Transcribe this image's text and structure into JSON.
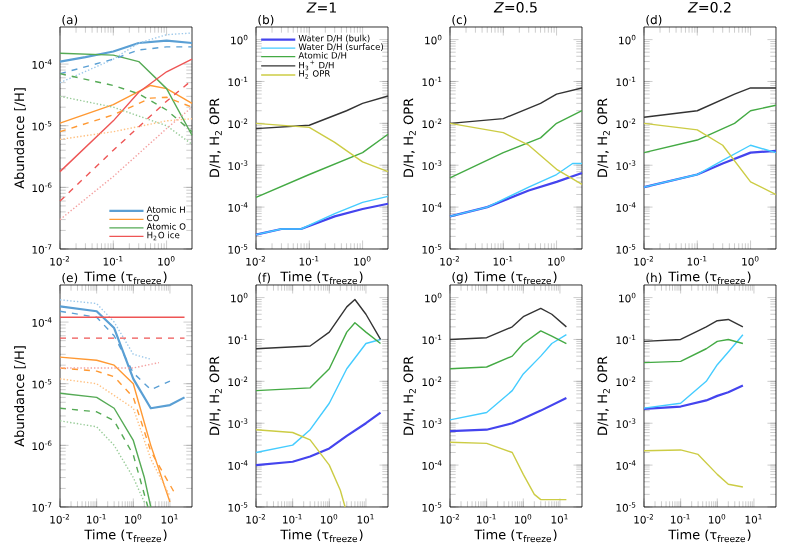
{
  "chart_data": [
    {
      "type": "line",
      "title": null,
      "annotations": [
        "(a)"
      ],
      "xlabel": "Time (τ$_{freeze}$)",
      "ylabel": "Abundance [/H]",
      "log": "xy",
      "legend": "bottom right",
      "xlim": [
        0.01,
        3
      ],
      "ylim": [
        1e-07,
        0.0004
      ],
      "xticks": [
        {
          "value": 0.01,
          "label": "10$^{-2}$"
        },
        {
          "value": 0.1,
          "label": "10$^{-1}$"
        },
        {
          "value": 1,
          "label": "10$^{0}$"
        }
      ],
      "yticks": [
        {
          "value": 1e-07,
          "label": "10$^{-7}$"
        },
        {
          "value": 1e-06,
          "label": "10$^{-6}$"
        },
        {
          "value": 1e-05,
          "label": "10$^{-5}$"
        },
        {
          "value": 0.0001,
          "label": "10$^{-4}$"
        }
      ],
      "series": [
        {
          "name": "Atomic H",
          "color": "#5a9fd4",
          "line_style": "solid",
          "x": [
            0.01,
            0.03,
            0.1,
            0.3,
            1,
            3
          ],
          "values": [
            0.00011,
            0.00013,
            0.00016,
            0.00022,
            0.00024,
            0.00022
          ]
        },
        {
          "name": "CO",
          "color": "#ff9933",
          "line_style": "solid",
          "x": [
            0.01,
            0.1,
            0.5,
            1,
            3
          ],
          "values": [
            1.1e-05,
            2.2e-05,
            4.5e-05,
            4e-05,
            2.3e-05
          ]
        },
        {
          "name": "Atomic O",
          "color": "#55aa55",
          "line_style": "solid",
          "x": [
            0.01,
            0.1,
            0.3,
            1,
            3
          ],
          "values": [
            0.00015,
            0.00014,
            0.00011,
            4e-05,
            7e-06
          ]
        },
        {
          "name": "H$_{2}$O ice",
          "color": "#ee5555",
          "line_style": "solid",
          "x": [
            0.01,
            0.1,
            0.3,
            1,
            3
          ],
          "values": [
            1.8e-06,
            1.2e-05,
            3.5e-05,
            7.5e-05,
            0.00012
          ]
        },
        {
          "color": "#5a9fd4",
          "line_style": "dashed",
          "x": [
            0.01,
            0.1,
            0.3,
            1,
            3
          ],
          "values": [
            7e-05,
            0.00012,
            0.00017,
            0.00019,
            0.00019
          ]
        },
        {
          "color": "#9cc8ea",
          "line_style": "dotted",
          "x": [
            0.01,
            0.1,
            0.3,
            1,
            3
          ],
          "values": [
            5e-05,
            0.00012,
            0.00022,
            0.0003,
            0.00032
          ]
        },
        {
          "color": "#ff9933",
          "line_style": "dashed",
          "x": [
            0.01,
            0.1,
            0.5,
            1,
            3
          ],
          "values": [
            8e-06,
            1.5e-05,
            2.8e-05,
            2.9e-05,
            2e-05
          ]
        },
        {
          "color": "#ffc080",
          "line_style": "dotted",
          "x": [
            0.01,
            0.1,
            1,
            3
          ],
          "values": [
            6e-06,
            8e-06,
            1.2e-05,
            1.3e-05
          ]
        },
        {
          "color": "#55aa55",
          "line_style": "dashed",
          "x": [
            0.01,
            0.1,
            0.3,
            1,
            3
          ],
          "values": [
            7e-05,
            4.5e-05,
            3.3e-05,
            1.8e-05,
            8e-06
          ]
        },
        {
          "color": "#99cc99",
          "line_style": "dotted",
          "x": [
            0.01,
            0.1,
            1,
            3
          ],
          "values": [
            3e-05,
            2e-05,
            1e-05,
            5e-06
          ]
        },
        {
          "color": "#ee5555",
          "line_style": "dashed",
          "x": [
            0.01,
            0.1,
            1,
            3
          ],
          "values": [
            6e-07,
            4e-06,
            2.5e-05,
            5.5e-05
          ]
        },
        {
          "color": "#f4a0a0",
          "line_style": "dotted",
          "x": [
            0.01,
            0.1,
            1,
            3
          ],
          "values": [
            3e-07,
            1.5e-06,
            9e-06,
            2e-05
          ]
        }
      ]
    },
    {
      "type": "line",
      "title": "*Z*=1",
      "annotations": [
        "(b)"
      ],
      "xlabel": "Time (τ$_{freeze}$)",
      "ylabel": "D/H, H$_{2}$ OPR",
      "log": "xy",
      "legend": "top left",
      "xlim": [
        0.01,
        3
      ],
      "ylim": [
        1e-05,
        2
      ],
      "xticks": [
        {
          "value": 0.01,
          "label": "10$^{-2}$"
        },
        {
          "value": 0.1,
          "label": "10$^{-1}$"
        },
        {
          "value": 1,
          "label": "10$^{0}$"
        }
      ],
      "yticks": [
        {
          "value": 1e-05,
          "label": "10$^{-5}$"
        },
        {
          "value": 0.0001,
          "label": "10$^{-4}$"
        },
        {
          "value": 0.001,
          "label": "10$^{-3}$"
        },
        {
          "value": 0.01,
          "label": "10$^{-2}$"
        },
        {
          "value": 0.1,
          "label": "10$^{-1}$"
        },
        {
          "value": 1,
          "label": "10$^{0}$"
        }
      ],
      "series": [
        {
          "name": "Water D/H (bulk)",
          "color": "#4444ee",
          "line_style": "solid",
          "x": [
            0.01,
            0.03,
            0.07,
            0.3,
            1,
            3
          ],
          "values": [
            2.2e-05,
            3e-05,
            3e-05,
            6e-05,
            9e-05,
            0.00012
          ]
        },
        {
          "name": "Water D/H (surface)",
          "color": "#44ccff",
          "line_style": "solid",
          "x": [
            0.01,
            0.03,
            0.07,
            0.3,
            1,
            3
          ],
          "values": [
            2.2e-05,
            3e-05,
            3e-05,
            7e-05,
            0.00013,
            0.00018
          ]
        },
        {
          "name": "Atomic D/H",
          "color": "#44aa44",
          "line_style": "solid",
          "x": [
            0.01,
            0.1,
            1,
            3
          ],
          "values": [
            0.00017,
            0.0006,
            0.002,
            0.0055
          ]
        },
        {
          "name": "H$_{3}$$^{+}$ D/H",
          "color": "#333333",
          "line_style": "solid",
          "x": [
            0.01,
            0.1,
            0.5,
            1,
            3
          ],
          "values": [
            0.0075,
            0.009,
            0.02,
            0.03,
            0.045
          ]
        },
        {
          "name": "H$_{2}$ OPR",
          "color": "#cccc44",
          "line_style": "solid",
          "x": [
            0.01,
            0.1,
            0.3,
            1,
            3
          ],
          "values": [
            0.01,
            0.008,
            0.0035,
            0.0012,
            0.0007
          ]
        }
      ]
    },
    {
      "type": "line",
      "title": "*Z*=0.5",
      "annotations": [
        "(c)"
      ],
      "xlabel": "Time (τ$_{freeze}$)",
      "ylabel": "D/H, H$_{2}$ OPR",
      "log": "xy",
      "xlim": [
        0.01,
        3
      ],
      "ylim": [
        1e-05,
        2
      ],
      "xticks": [
        {
          "value": 0.01,
          "label": "10$^{-2}$"
        },
        {
          "value": 0.1,
          "label": "10$^{-1}$"
        },
        {
          "value": 1,
          "label": "10$^{0}$"
        }
      ],
      "yticks": [
        {
          "value": 1e-05,
          "label": "10$^{-5}$"
        },
        {
          "value": 0.0001,
          "label": "10$^{-4}$"
        },
        {
          "value": 0.001,
          "label": "10$^{-3}$"
        },
        {
          "value": 0.01,
          "label": "10$^{-2}$"
        },
        {
          "value": 0.1,
          "label": "10$^{-1}$"
        },
        {
          "value": 1,
          "label": "10$^{0}$"
        }
      ],
      "series": [
        {
          "color": "#4444ee",
          "line_style": "solid",
          "x": [
            0.01,
            0.05,
            0.3,
            1,
            3
          ],
          "values": [
            6e-05,
            0.0001,
            0.00025,
            0.0004,
            0.00065
          ]
        },
        {
          "color": "#44ccff",
          "line_style": "solid",
          "x": [
            0.01,
            0.05,
            0.3,
            1,
            2,
            3
          ],
          "values": [
            6e-05,
            0.0001,
            0.0003,
            0.0006,
            0.0011,
            0.0011
          ]
        },
        {
          "color": "#44aa44",
          "line_style": "solid",
          "x": [
            0.01,
            0.1,
            0.5,
            1,
            3
          ],
          "values": [
            0.0005,
            0.002,
            0.0045,
            0.01,
            0.02
          ]
        },
        {
          "color": "#333333",
          "line_style": "solid",
          "x": [
            0.01,
            0.1,
            0.5,
            1,
            3
          ],
          "values": [
            0.01,
            0.013,
            0.03,
            0.05,
            0.07
          ]
        },
        {
          "color": "#cccc44",
          "line_style": "solid",
          "x": [
            0.01,
            0.1,
            0.3,
            1,
            3
          ],
          "values": [
            0.01,
            0.006,
            0.003,
            0.0008,
            0.00035
          ]
        }
      ]
    },
    {
      "type": "line",
      "title": "*Z*=0.2",
      "annotations": [
        "(d)"
      ],
      "xlabel": "Time (τ$_{freeze}$)",
      "ylabel": "D/H, H$_{2}$ OPR",
      "log": "xy",
      "xlim": [
        0.01,
        3
      ],
      "ylim": [
        1e-05,
        2
      ],
      "xticks": [
        {
          "value": 0.01,
          "label": "10$^{-2}$"
        },
        {
          "value": 0.1,
          "label": "10$^{-1}$"
        },
        {
          "value": 1,
          "label": "10$^{0}$"
        }
      ],
      "yticks": [
        {
          "value": 1e-05,
          "label": "10$^{-5}$"
        },
        {
          "value": 0.0001,
          "label": "10$^{-4}$"
        },
        {
          "value": 0.001,
          "label": "10$^{-3}$"
        },
        {
          "value": 0.01,
          "label": "10$^{-2}$"
        },
        {
          "value": 0.1,
          "label": "10$^{-1}$"
        },
        {
          "value": 1,
          "label": "10$^{0}$"
        }
      ],
      "series": [
        {
          "color": "#4444ee",
          "line_style": "solid",
          "x": [
            0.01,
            0.1,
            0.3,
            1,
            3
          ],
          "values": [
            0.0003,
            0.0006,
            0.0011,
            0.002,
            0.0022
          ]
        },
        {
          "color": "#44ccff",
          "line_style": "solid",
          "x": [
            0.01,
            0.1,
            0.3,
            1,
            3
          ],
          "values": [
            0.0003,
            0.0006,
            0.0013,
            0.003,
            0.002
          ]
        },
        {
          "color": "#44aa44",
          "line_style": "solid",
          "x": [
            0.01,
            0.1,
            0.5,
            1,
            3
          ],
          "values": [
            0.002,
            0.004,
            0.01,
            0.02,
            0.027
          ]
        },
        {
          "color": "#333333",
          "line_style": "solid",
          "x": [
            0.01,
            0.1,
            0.5,
            1,
            3
          ],
          "values": [
            0.014,
            0.02,
            0.05,
            0.07,
            0.07
          ]
        },
        {
          "color": "#cccc44",
          "line_style": "solid",
          "x": [
            0.01,
            0.1,
            0.3,
            1,
            3
          ],
          "values": [
            0.01,
            0.007,
            0.003,
            0.0004,
            0.0002
          ]
        }
      ]
    },
    {
      "type": "line",
      "title": null,
      "annotations": [
        "(e)"
      ],
      "xlabel": "Time (τ$_{freeze}$)",
      "ylabel": "Abundance [/H]",
      "log": "xy",
      "xlim": [
        0.01,
        40
      ],
      "ylim": [
        1e-07,
        0.0004
      ],
      "xticks": [
        {
          "value": 0.01,
          "label": "10$^{-2}$"
        },
        {
          "value": 0.1,
          "label": "10$^{-1}$"
        },
        {
          "value": 1,
          "label": "10$^{0}$"
        },
        {
          "value": 10,
          "label": "10$^{1}$"
        }
      ],
      "yticks": [
        {
          "value": 1e-07,
          "label": "10$^{-7}$"
        },
        {
          "value": 1e-06,
          "label": "10$^{-6}$"
        },
        {
          "value": 1e-05,
          "label": "10$^{-5}$"
        },
        {
          "value": 0.0001,
          "label": "10$^{-4}$"
        }
      ],
      "series": [
        {
          "color": "#5a9fd4",
          "line_style": "solid",
          "x": [
            0.01,
            0.1,
            0.3,
            1,
            3,
            10,
            25
          ],
          "values": [
            0.00018,
            0.00015,
            8e-05,
            1.2e-05,
            4e-06,
            4.5e-06,
            6e-06
          ]
        },
        {
          "color": "#5a9fd4",
          "line_style": "dashed",
          "x": [
            0.01,
            0.1,
            0.3,
            1,
            3,
            10
          ],
          "values": [
            0.00015,
            0.00012,
            6e-05,
            1.5e-05,
            8e-06,
            1.1e-05
          ]
        },
        {
          "color": "#9cc8ea",
          "line_style": "dotted",
          "x": [
            0.01,
            0.1,
            0.3,
            1,
            3
          ],
          "values": [
            0.00023,
            0.0002,
            0.0001,
            3e-05,
            2.5e-05
          ]
        },
        {
          "color": "#ff9933",
          "line_style": "solid",
          "x": [
            0.01,
            0.1,
            0.3,
            1,
            3,
            10
          ],
          "values": [
            2.7e-05,
            2.4e-05,
            2e-05,
            1e-05,
            1e-06,
            1.2e-07
          ]
        },
        {
          "color": "#ff9933",
          "line_style": "dashed",
          "x": [
            0.01,
            0.1,
            0.3,
            1,
            3,
            15
          ],
          "values": [
            1.8e-05,
            1.6e-05,
            1.3e-05,
            6e-06,
            8e-07,
            1.5e-07
          ]
        },
        {
          "color": "#ffc080",
          "line_style": "dotted",
          "x": [
            0.01,
            0.1,
            1,
            3,
            10
          ],
          "values": [
            1.2e-05,
            1e-05,
            4e-06,
            6e-07,
            1.5e-07
          ]
        },
        {
          "color": "#55aa55",
          "line_style": "solid",
          "x": [
            0.01,
            0.1,
            0.3,
            1,
            2,
            3
          ],
          "values": [
            7e-06,
            6e-06,
            4e-06,
            1.2e-06,
            3e-07,
            1e-07
          ]
        },
        {
          "color": "#55aa55",
          "line_style": "dashed",
          "x": [
            0.01,
            0.1,
            0.3,
            1,
            2.5
          ],
          "values": [
            4e-06,
            3.5e-06,
            2.5e-06,
            7e-07,
            1e-07
          ]
        },
        {
          "color": "#99cc99",
          "line_style": "dotted",
          "x": [
            0.01,
            0.1,
            0.3,
            1,
            2
          ],
          "values": [
            2.5e-06,
            2e-06,
            1e-06,
            3e-07,
            1.2e-07
          ]
        },
        {
          "color": "#ee5555",
          "line_style": "solid",
          "x": [
            0.01,
            25
          ],
          "values": [
            0.00012,
            0.00012
          ]
        },
        {
          "color": "#ee5555",
          "line_style": "dashed",
          "x": [
            0.01,
            25
          ],
          "values": [
            5.5e-05,
            5.5e-05
          ]
        },
        {
          "color": "#f4a0a0",
          "line_style": "dotted",
          "x": [
            0.01,
            1,
            5
          ],
          "values": [
            1.8e-05,
            1.8e-05,
            2.2e-05
          ]
        }
      ]
    },
    {
      "type": "line",
      "title": null,
      "annotations": [
        "(f)"
      ],
      "xlabel": "Time (τ$_{freeze}$)",
      "ylabel": "D/H, H$_{2}$ OPR",
      "log": "xy",
      "xlim": [
        0.01,
        40
      ],
      "ylim": [
        1e-05,
        2
      ],
      "xticks": [
        {
          "value": 0.01,
          "label": "10$^{-2}$"
        },
        {
          "value": 0.1,
          "label": "10$^{-1}$"
        },
        {
          "value": 1,
          "label": "10$^{0}$"
        },
        {
          "value": 10,
          "label": "10$^{1}$"
        }
      ],
      "yticks": [
        {
          "value": 1e-05,
          "label": "10$^{-5}$"
        },
        {
          "value": 0.0001,
          "label": "10$^{-4}$"
        },
        {
          "value": 0.001,
          "label": "10$^{-3}$"
        },
        {
          "value": 0.01,
          "label": "10$^{-2}$"
        },
        {
          "value": 0.1,
          "label": "10$^{-1}$"
        },
        {
          "value": 1,
          "label": "10$^{0}$"
        }
      ],
      "series": [
        {
          "color": "#4444ee",
          "line_style": "solid",
          "x": [
            0.01,
            0.1,
            0.3,
            1,
            3,
            10,
            25
          ],
          "values": [
            0.0001,
            0.00012,
            0.00016,
            0.00025,
            0.0005,
            0.001,
            0.0018
          ]
        },
        {
          "color": "#44ccff",
          "line_style": "solid",
          "x": [
            0.01,
            0.1,
            0.3,
            1,
            3,
            10,
            25
          ],
          "values": [
            0.0002,
            0.0003,
            0.0007,
            0.003,
            0.02,
            0.08,
            0.1
          ]
        },
        {
          "color": "#44aa44",
          "line_style": "solid",
          "x": [
            0.01,
            0.3,
            1,
            3,
            5,
            10,
            25
          ],
          "values": [
            0.006,
            0.007,
            0.02,
            0.15,
            0.25,
            0.15,
            0.08
          ]
        },
        {
          "color": "#333333",
          "line_style": "solid",
          "x": [
            0.01,
            0.3,
            1,
            3,
            5,
            10,
            25
          ],
          "values": [
            0.06,
            0.07,
            0.15,
            0.6,
            0.9,
            0.4,
            0.1
          ]
        },
        {
          "color": "#cccc44",
          "line_style": "solid",
          "x": [
            0.01,
            0.1,
            0.3,
            1,
            2,
            2.7
          ],
          "values": [
            0.0007,
            0.0006,
            0.0004,
            0.0001,
            2.5e-05,
            1e-05
          ]
        }
      ]
    },
    {
      "type": "line",
      "title": null,
      "annotations": [
        "(g)"
      ],
      "xlabel": "Time (τ$_{freeze}$)",
      "ylabel": "D/H, H$_{2}$ OPR",
      "log": "xy",
      "xlim": [
        0.01,
        40
      ],
      "ylim": [
        1e-05,
        2
      ],
      "xticks": [
        {
          "value": 0.01,
          "label": "10$^{-2}$"
        },
        {
          "value": 0.1,
          "label": "10$^{-1}$"
        },
        {
          "value": 1,
          "label": "10$^{0}$"
        },
        {
          "value": 10,
          "label": "10$^{1}$"
        }
      ],
      "yticks": [
        {
          "value": 1e-05,
          "label": "10$^{-5}$"
        },
        {
          "value": 0.0001,
          "label": "10$^{-4}$"
        },
        {
          "value": 0.001,
          "label": "10$^{-3}$"
        },
        {
          "value": 0.01,
          "label": "10$^{-2}$"
        },
        {
          "value": 0.1,
          "label": "10$^{-1}$"
        },
        {
          "value": 1,
          "label": "10$^{0}$"
        }
      ],
      "series": [
        {
          "color": "#4444ee",
          "line_style": "solid",
          "x": [
            0.01,
            0.1,
            0.5,
            1,
            3,
            15
          ],
          "values": [
            0.00065,
            0.0007,
            0.001,
            0.0013,
            0.002,
            0.004
          ]
        },
        {
          "color": "#44ccff",
          "line_style": "solid",
          "x": [
            0.01,
            0.1,
            0.5,
            1,
            3,
            6,
            15
          ],
          "values": [
            0.0012,
            0.0018,
            0.006,
            0.015,
            0.04,
            0.08,
            0.13
          ]
        },
        {
          "color": "#44aa44",
          "line_style": "solid",
          "x": [
            0.01,
            0.1,
            0.5,
            1,
            3,
            6,
            15
          ],
          "values": [
            0.02,
            0.022,
            0.04,
            0.08,
            0.16,
            0.12,
            0.08
          ]
        },
        {
          "color": "#333333",
          "line_style": "solid",
          "x": [
            0.01,
            0.1,
            0.5,
            1,
            3,
            6,
            15
          ],
          "values": [
            0.1,
            0.11,
            0.2,
            0.35,
            0.55,
            0.4,
            0.2
          ]
        },
        {
          "color": "#cccc44",
          "line_style": "solid",
          "x": [
            0.01,
            0.1,
            0.5,
            1,
            2,
            3,
            15
          ],
          "values": [
            0.00035,
            0.00033,
            0.0002,
            6e-05,
            2e-05,
            1.5e-05,
            1.5e-05
          ]
        }
      ]
    },
    {
      "type": "line",
      "title": null,
      "annotations": [
        "(h)"
      ],
      "xlabel": "Time (τ$_{freeze}$)",
      "ylabel": "D/H, H$_{2}$ OPR",
      "log": "xy",
      "xlim": [
        0.01,
        40
      ],
      "ylim": [
        1e-05,
        2
      ],
      "xticks": [
        {
          "value": 0.01,
          "label": "10$^{-2}$"
        },
        {
          "value": 0.1,
          "label": "10$^{-1}$"
        },
        {
          "value": 1,
          "label": "10$^{0}$"
        },
        {
          "value": 10,
          "label": "10$^{1}$"
        }
      ],
      "yticks": [
        {
          "value": 1e-05,
          "label": "10$^{-5}$"
        },
        {
          "value": 0.0001,
          "label": "10$^{-4}$"
        },
        {
          "value": 0.001,
          "label": "10$^{-3}$"
        },
        {
          "value": 0.01,
          "label": "10$^{-2}$"
        },
        {
          "value": 0.1,
          "label": "10$^{-1}$"
        },
        {
          "value": 1,
          "label": "10$^{0}$"
        }
      ],
      "series": [
        {
          "color": "#4444ee",
          "line_style": "solid",
          "x": [
            0.01,
            0.1,
            0.5,
            1,
            2,
            5
          ],
          "values": [
            0.0022,
            0.0025,
            0.0035,
            0.0045,
            0.0055,
            0.008
          ]
        },
        {
          "color": "#44ccff",
          "line_style": "solid",
          "x": [
            0.01,
            0.1,
            0.5,
            1,
            2,
            5
          ],
          "values": [
            0.0023,
            0.003,
            0.01,
            0.025,
            0.05,
            0.13
          ]
        },
        {
          "color": "#44aa44",
          "line_style": "solid",
          "x": [
            0.01,
            0.1,
            0.5,
            1,
            2,
            5
          ],
          "values": [
            0.028,
            0.03,
            0.06,
            0.09,
            0.1,
            0.08
          ]
        },
        {
          "color": "#333333",
          "line_style": "solid",
          "x": [
            0.01,
            0.1,
            0.5,
            1,
            2,
            5
          ],
          "values": [
            0.09,
            0.1,
            0.2,
            0.28,
            0.3,
            0.2
          ]
        },
        {
          "color": "#cccc44",
          "line_style": "solid",
          "x": [
            0.01,
            0.1,
            0.3,
            1,
            2,
            5
          ],
          "values": [
            0.00022,
            0.00023,
            0.00018,
            6e-05,
            3.5e-05,
            3e-05
          ]
        }
      ]
    }
  ]
}
